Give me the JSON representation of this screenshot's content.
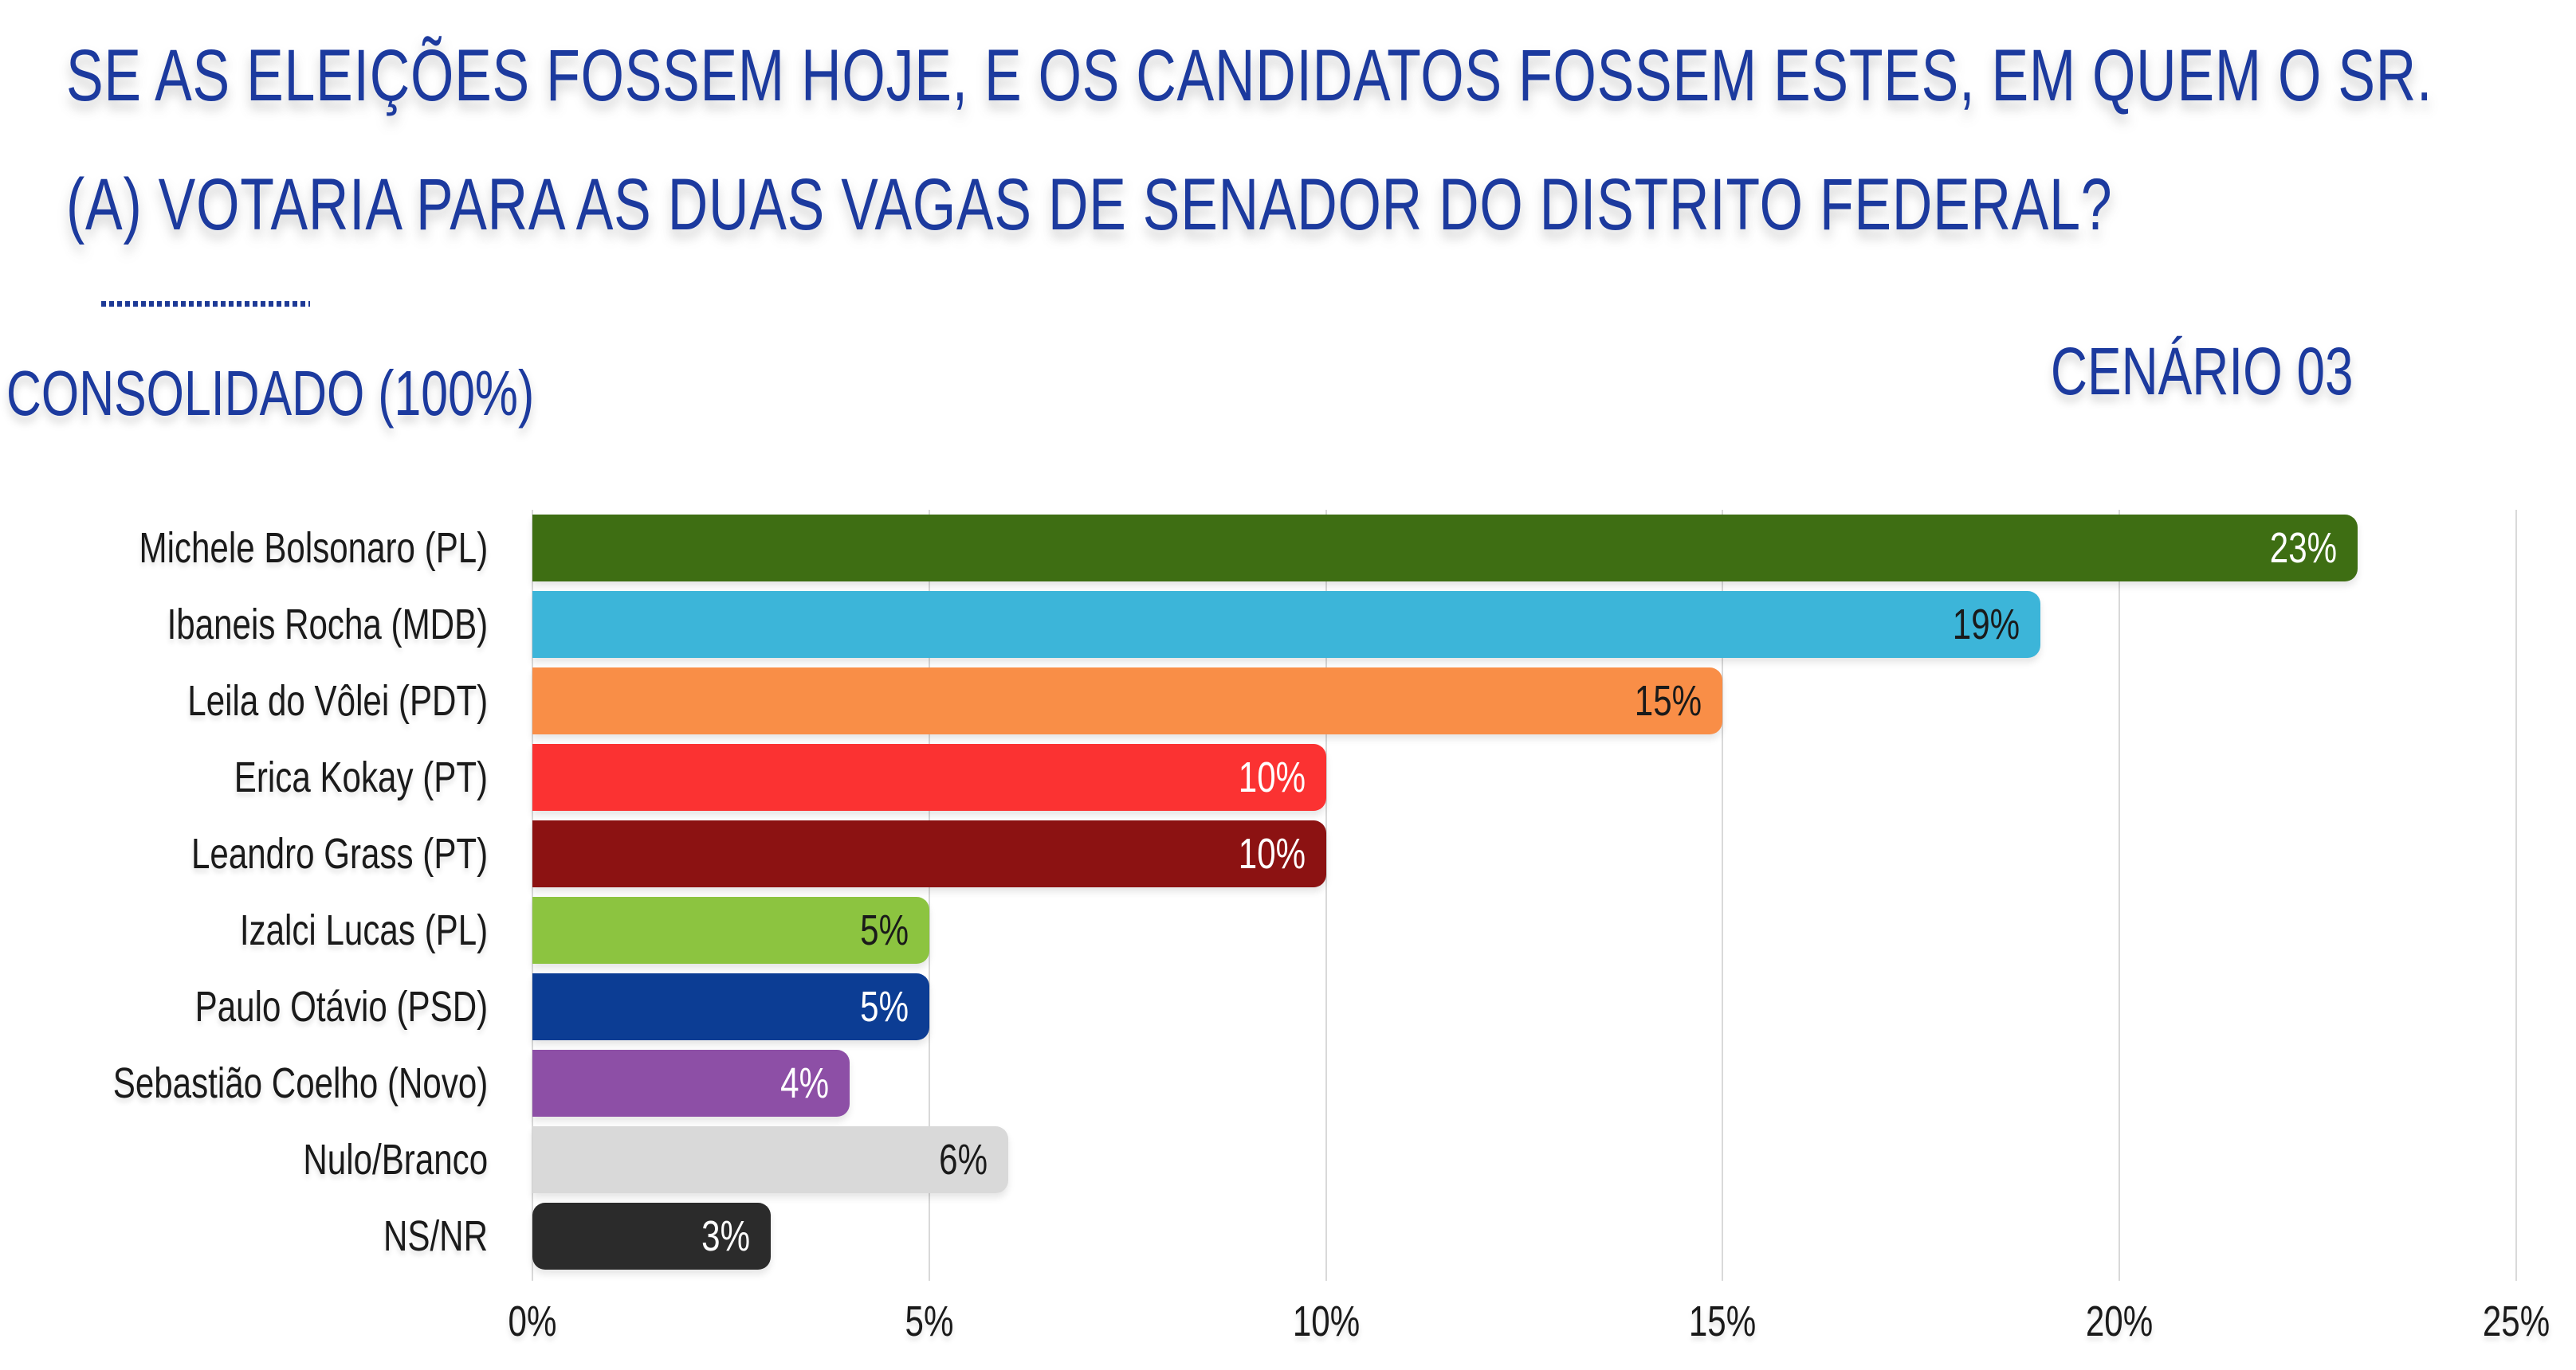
{
  "title": {
    "line1": "SE AS ELEIÇÕES FOSSEM HOJE, E OS CANDIDATOS FOSSEM ESTES, EM QUEM O SR.",
    "line2": "(A) VOTARIA PARA AS DUAS VAGAS DE SENADOR DO DISTRITO FEDERAL?"
  },
  "subtitle_left": "CONSOLIDADO (100%)",
  "scenario_label": "CENÁRIO 03",
  "colors": {
    "heading_blue": "#1c3a9e",
    "grid": "#d9d9d9",
    "text": "#1a1a1a",
    "background": "#ffffff"
  },
  "chart_data": {
    "type": "bar",
    "orientation": "horizontal",
    "title": "CENÁRIO 03 — CONSOLIDADO (100%)",
    "categories": [
      "Michele Bolsonaro (PL)",
      "Ibaneis Rocha (MDB)",
      "Leila do Vôlei (PDT)",
      "Erica Kokay (PT)",
      "Leandro Grass (PT)",
      "Izalci Lucas (PL)",
      "Paulo Otávio (PSD)",
      "Sebastião Coelho (Novo)",
      "Nulo/Branco",
      "NS/NR"
    ],
    "values": [
      23,
      19,
      15,
      10,
      10,
      5,
      5,
      4,
      6,
      3
    ],
    "value_labels": [
      "23%",
      "19%",
      "15%",
      "10%",
      "10%",
      "5%",
      "5%",
      "4%",
      "6%",
      "3%"
    ],
    "bar_colors": [
      "#3e6e13",
      "#3cb5d9",
      "#f98e47",
      "#fb3232",
      "#8c1212",
      "#8cc440",
      "#0c3d94",
      "#8d4fa6",
      "#d9d9d9",
      "#2b2b2b"
    ],
    "value_label_colors": [
      "#ffffff",
      "#1a1a1a",
      "#1a1a1a",
      "#ffffff",
      "#ffffff",
      "#1a1a1a",
      "#ffffff",
      "#ffffff",
      "#1a1a1a",
      "#ffffff"
    ],
    "x_ticks": [
      "0%",
      "5%",
      "10%",
      "15%",
      "20%",
      "25%"
    ],
    "xlim": [
      0,
      25
    ],
    "grid": true,
    "legend": false
  }
}
